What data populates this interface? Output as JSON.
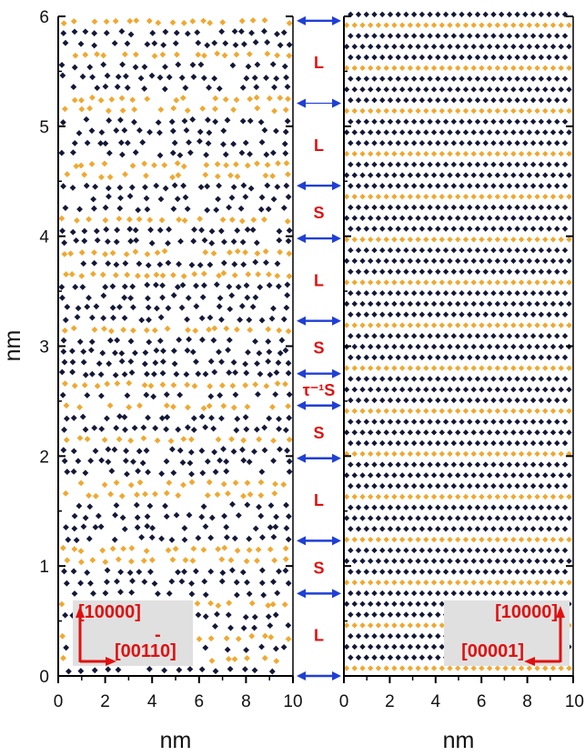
{
  "axes": {
    "y_title": "nm",
    "x_title_left": "nm",
    "x_title_right": "nm",
    "y_ticks": [
      "0",
      "1",
      "2",
      "3",
      "4",
      "5",
      "6"
    ],
    "x_ticks_left": [
      "0",
      "2",
      "4",
      "6",
      "8",
      "10"
    ],
    "x_ticks_right": [
      "0",
      "2",
      "4",
      "6",
      "8",
      "10"
    ]
  },
  "layers": [
    {
      "label": "L",
      "y_from": 0.0,
      "y_to": 0.75
    },
    {
      "label": "S",
      "y_from": 0.75,
      "y_to": 1.23
    },
    {
      "label": "L",
      "y_from": 1.23,
      "y_to": 1.98
    },
    {
      "label": "S",
      "y_from": 1.98,
      "y_to": 2.46
    },
    {
      "label": "τ⁻¹S",
      "y_from": 2.46,
      "y_to": 2.75
    },
    {
      "label": "S",
      "y_from": 2.75,
      "y_to": 3.23
    },
    {
      "label": "L",
      "y_from": 3.23,
      "y_to": 3.98
    },
    {
      "label": "S",
      "y_from": 3.98,
      "y_to": 4.46
    },
    {
      "label": "L",
      "y_from": 4.46,
      "y_to": 5.21
    },
    {
      "label": "L",
      "y_from": 5.21,
      "y_to": 5.96
    }
  ],
  "left_legend": {
    "vertical_label": "[10000]",
    "horizontal_label": "[00110]",
    "overbar_mark": "-"
  },
  "right_legend": {
    "vertical_label": "[10000]",
    "horizontal_label": "[00001]"
  },
  "colors": {
    "dark_atom": "#141838",
    "gold_atom": "#f0a830",
    "arrow": "#1f3fd6",
    "label": "#e01010",
    "panel": "#e0e0e0"
  }
}
